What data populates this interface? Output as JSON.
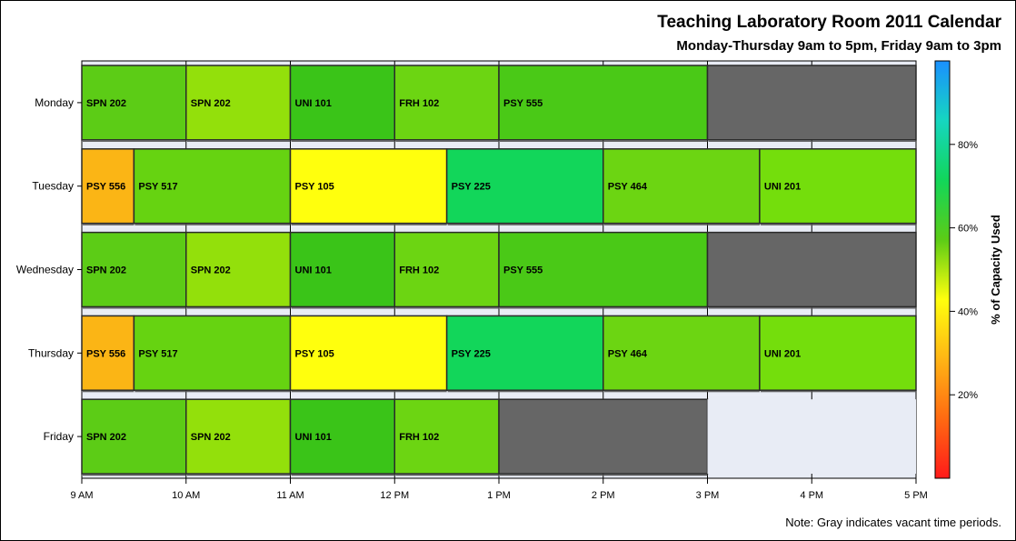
{
  "title": "Teaching Laboratory Room 2011 Calendar",
  "subtitle": "Monday-Thursday 9am to 5pm, Friday 9am to 3pm",
  "note": "Note: Gray indicates vacant time periods.",
  "colors": {
    "vacant": "#666666",
    "closed": "#e8ecf5",
    "axis": "#000000"
  },
  "chart_data": {
    "type": "bar",
    "orientation": "horizontal",
    "subtype": "schedule",
    "x_axis": {
      "min_hour": 9,
      "max_hour": 17,
      "ticks": [
        "9 AM",
        "10 AM",
        "11 AM",
        "12 PM",
        "1 PM",
        "2 PM",
        "3 PM",
        "4 PM",
        "5 PM"
      ]
    },
    "days": [
      "Monday",
      "Tuesday",
      "Wednesday",
      "Thursday",
      "Friday"
    ],
    "sessions": [
      {
        "day": "Monday",
        "course": "SPN 202",
        "start": 9,
        "end": 10,
        "color": "#5ccc16"
      },
      {
        "day": "Monday",
        "course": "SPN 202",
        "start": 10,
        "end": 11,
        "color": "#93e00b"
      },
      {
        "day": "Monday",
        "course": "UNI 101",
        "start": 11,
        "end": 12,
        "color": "#3ac418"
      },
      {
        "day": "Monday",
        "course": "FRH 102",
        "start": 12,
        "end": 13,
        "color": "#6cd512"
      },
      {
        "day": "Monday",
        "course": "PSY 555",
        "start": 13,
        "end": 15,
        "color": "#4ac917"
      },
      {
        "day": "Monday",
        "course": "",
        "start": 15,
        "end": 17,
        "color": "#666666",
        "vacant": true
      },
      {
        "day": "Tuesday",
        "course": "PSY 556",
        "start": 9,
        "end": 9.5,
        "color": "#fbb515"
      },
      {
        "day": "Tuesday",
        "course": "PSY 517",
        "start": 9.5,
        "end": 11,
        "color": "#66d311"
      },
      {
        "day": "Tuesday",
        "course": "PSY 105",
        "start": 11,
        "end": 12.5,
        "color": "#ffff0d"
      },
      {
        "day": "Tuesday",
        "course": "PSY 225",
        "start": 12.5,
        "end": 14,
        "color": "#12d65a"
      },
      {
        "day": "Tuesday",
        "course": "PSY 464",
        "start": 14,
        "end": 15.5,
        "color": "#6cd512"
      },
      {
        "day": "Tuesday",
        "course": "UNI 201",
        "start": 15.5,
        "end": 17,
        "color": "#74de0c"
      },
      {
        "day": "Wednesday",
        "course": "SPN 202",
        "start": 9,
        "end": 10,
        "color": "#5ccc16"
      },
      {
        "day": "Wednesday",
        "course": "SPN 202",
        "start": 10,
        "end": 11,
        "color": "#93e00b"
      },
      {
        "day": "Wednesday",
        "course": "UNI 101",
        "start": 11,
        "end": 12,
        "color": "#3ac418"
      },
      {
        "day": "Wednesday",
        "course": "FRH 102",
        "start": 12,
        "end": 13,
        "color": "#6cd512"
      },
      {
        "day": "Wednesday",
        "course": "PSY 555",
        "start": 13,
        "end": 15,
        "color": "#4ac917"
      },
      {
        "day": "Wednesday",
        "course": "",
        "start": 15,
        "end": 17,
        "color": "#666666",
        "vacant": true
      },
      {
        "day": "Thursday",
        "course": "PSY 556",
        "start": 9,
        "end": 9.5,
        "color": "#fbb515"
      },
      {
        "day": "Thursday",
        "course": "PSY 517",
        "start": 9.5,
        "end": 11,
        "color": "#66d311"
      },
      {
        "day": "Thursday",
        "course": "PSY 105",
        "start": 11,
        "end": 12.5,
        "color": "#ffff0d"
      },
      {
        "day": "Thursday",
        "course": "PSY 225",
        "start": 12.5,
        "end": 14,
        "color": "#12d65a"
      },
      {
        "day": "Thursday",
        "course": "PSY 464",
        "start": 14,
        "end": 15.5,
        "color": "#6cd512"
      },
      {
        "day": "Thursday",
        "course": "UNI 201",
        "start": 15.5,
        "end": 17,
        "color": "#74de0c"
      },
      {
        "day": "Friday",
        "course": "SPN 202",
        "start": 9,
        "end": 10,
        "color": "#5ccc16"
      },
      {
        "day": "Friday",
        "course": "SPN 202",
        "start": 10,
        "end": 11,
        "color": "#93e00b"
      },
      {
        "day": "Friday",
        "course": "UNI 101",
        "start": 11,
        "end": 12,
        "color": "#3ac418"
      },
      {
        "day": "Friday",
        "course": "FRH 102",
        "start": 12,
        "end": 13,
        "color": "#6cd512"
      },
      {
        "day": "Friday",
        "course": "",
        "start": 13,
        "end": 15,
        "color": "#666666",
        "vacant": true
      },
      {
        "day": "Friday",
        "course": "",
        "start": 15,
        "end": 17,
        "color": "#e8ecf5",
        "closed": true
      }
    ],
    "colorbar": {
      "label": "% of Capacity Used",
      "min": 0,
      "max": 100,
      "ticks": [
        {
          "value": 20,
          "label": "20%"
        },
        {
          "value": 40,
          "label": "40%"
        },
        {
          "value": 60,
          "label": "60%"
        },
        {
          "value": 80,
          "label": "80%"
        }
      ],
      "stops": [
        "#ff1a1a",
        "#ff6a12",
        "#ffb515",
        "#ffff0d",
        "#5ccc16",
        "#12d65a",
        "#16d6c0",
        "#1a90ff"
      ]
    }
  }
}
